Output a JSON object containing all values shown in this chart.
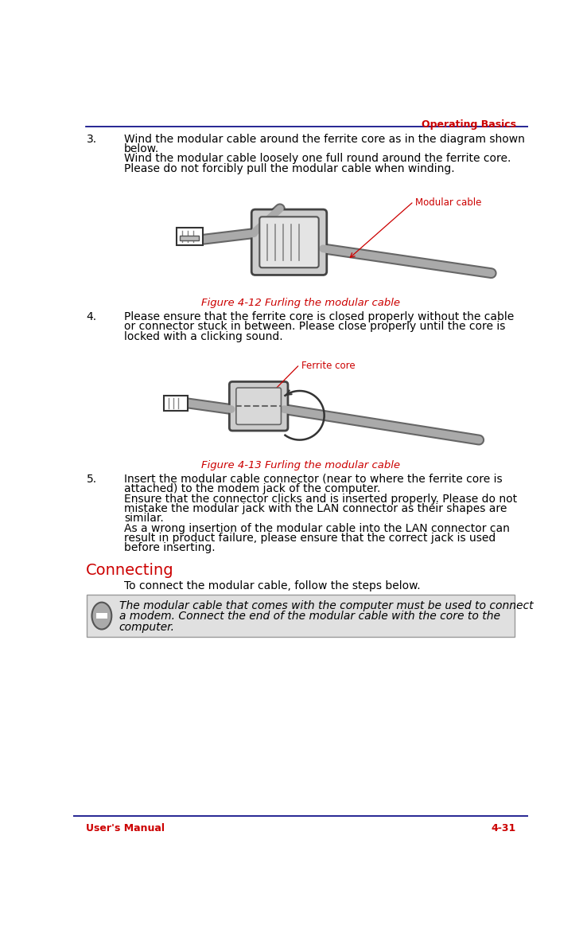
{
  "header_text": "Operating Basics",
  "header_color": "#cc0000",
  "header_line_color": "#000080",
  "footer_left": "User's Manual",
  "footer_right": "4-31",
  "footer_color": "#cc0000",
  "footer_line_color": "#000080",
  "bg_color": "#ffffff",
  "body_text_color": "#000000",
  "figure_caption_color": "#cc0000",
  "step3_number": "3.",
  "step3_line1": "Wind the modular cable around the ferrite core as in the diagram shown",
  "step3_line2": "below.",
  "step3_line3": "Wind the modular cable loosely one full round around the ferrite core.",
  "step3_line4": "Please do not forcibly pull the modular cable when winding.",
  "fig12_caption": "Figure 4-12 Furling the modular cable",
  "label_modular_cable": "Modular cable",
  "label_ferrite_core": "Ferrite core",
  "step4_number": "4.",
  "step4_line1": "Please ensure that the ferrite core is closed properly without the cable",
  "step4_line2": "or connector stuck in between. Please close properly until the core is",
  "step4_line3": "locked with a clicking sound.",
  "fig13_caption": "Figure 4-13 Furling the modular cable",
  "step5_number": "5.",
  "step5_line1": "Insert the modular cable connector (near to where the ferrite core is",
  "step5_line2": "attached) to the modem jack of the computer.",
  "step5_line3": "Ensure that the connector clicks and is inserted properly. Please do not",
  "step5_line4": "mistake the modular jack with the LAN connector as their shapes are",
  "step5_line5": "similar.",
  "step5_line6": "As a wrong insertion of the modular cable into the LAN connector can",
  "step5_line7": "result in product failure, please ensure that the correct jack is used",
  "step5_line8": "before inserting.",
  "section_title": "Connecting",
  "section_title_color": "#cc0000",
  "section_para": "To connect the modular cable, follow the steps below.",
  "note_line1": "The modular cable that comes with the computer must be used to connect",
  "note_line2": "a modem. Connect the end of the modular cable with the core to the",
  "note_line3": "computer.",
  "note_bg_color": "#e0e0e0",
  "note_border_color": "#999999",
  "cable_color": "#aaaaaa",
  "cable_dark": "#666666",
  "core_fill": "#cccccc",
  "core_edge": "#444444"
}
